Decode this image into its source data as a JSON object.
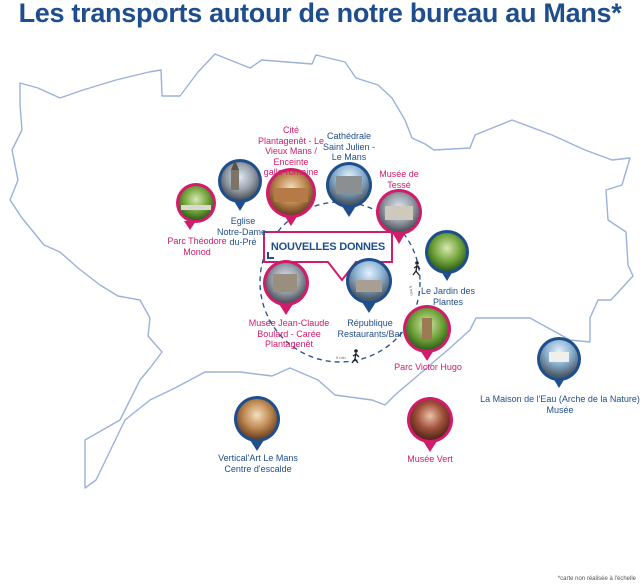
{
  "title": "Les transports autour de notre bureau au Mans*",
  "banner": "NOUVELLES DONNES",
  "note": "*carte non réalisée à l'échelle",
  "colors": {
    "pink": "#d01c6b",
    "blue": "#1f4e8c",
    "outline": "#9bb1da"
  },
  "transport_icons": [
    "walking-person-icon",
    "walking-person-icon",
    "walking-person-icon"
  ],
  "places": [
    {
      "id": "parc-theodore-monod",
      "lines": [
        "Parc Théodore",
        "Monod"
      ],
      "color": "pink",
      "thumb": "park-trees-thumbnail"
    },
    {
      "id": "eglise-notre-dame-du-pre",
      "lines": [
        "Eglise",
        "Notre-Dame-",
        "du-Pré"
      ],
      "color": "blue",
      "thumb": "church-thumbnail"
    },
    {
      "id": "cite-plantagenet",
      "lines": [
        "Cité",
        "Plantagenêt - Le",
        "Vieux Mans /",
        "Enceinte",
        "gallo-romaine"
      ],
      "color": "pink",
      "thumb": "old-town-thumbnail"
    },
    {
      "id": "cathedrale-saint-julien",
      "lines": [
        "Cathédrale",
        "Saint Julien -",
        "Le Mans"
      ],
      "color": "blue",
      "thumb": "cathedral-thumbnail"
    },
    {
      "id": "musee-de-tesse",
      "lines": [
        "Musée de",
        "Tessé"
      ],
      "color": "pink",
      "thumb": "museum-building-thumbnail"
    },
    {
      "id": "le-jardin-des-plantes",
      "lines": [
        "Le Jardin des",
        "Plantes"
      ],
      "color": "blue",
      "thumb": "garden-thumbnail"
    },
    {
      "id": "musee-jean-claude-boulard",
      "lines": [
        "Musée Jean-Claude",
        "Boulard - Carée",
        "Plantagenêt"
      ],
      "color": "pink",
      "thumb": "museum-facade-thumbnail"
    },
    {
      "id": "republique-restaurants-bar",
      "lines": [
        "République",
        "Restaurants/Bar"
      ],
      "color": "blue",
      "thumb": "square-thumbnail"
    },
    {
      "id": "parc-victor-hugo",
      "lines": [
        "Parc Victor Hugo"
      ],
      "color": "pink",
      "thumb": "park-path-thumbnail"
    },
    {
      "id": "la-maison-de-l-eau",
      "lines": [
        "La Maison de l'Eau (Arche de la Nature)",
        "Musée"
      ],
      "color": "blue",
      "thumb": "water-house-thumbnail"
    },
    {
      "id": "vertical-art-le-mans",
      "lines": [
        "Vertical'Art Le Mans",
        "Centre d'escalde"
      ],
      "color": "blue",
      "thumb": "climbing-wall-thumbnail"
    },
    {
      "id": "musee-vert",
      "lines": [
        "Musée Vert"
      ],
      "color": "pink",
      "thumb": "natural-history-thumbnail"
    }
  ]
}
